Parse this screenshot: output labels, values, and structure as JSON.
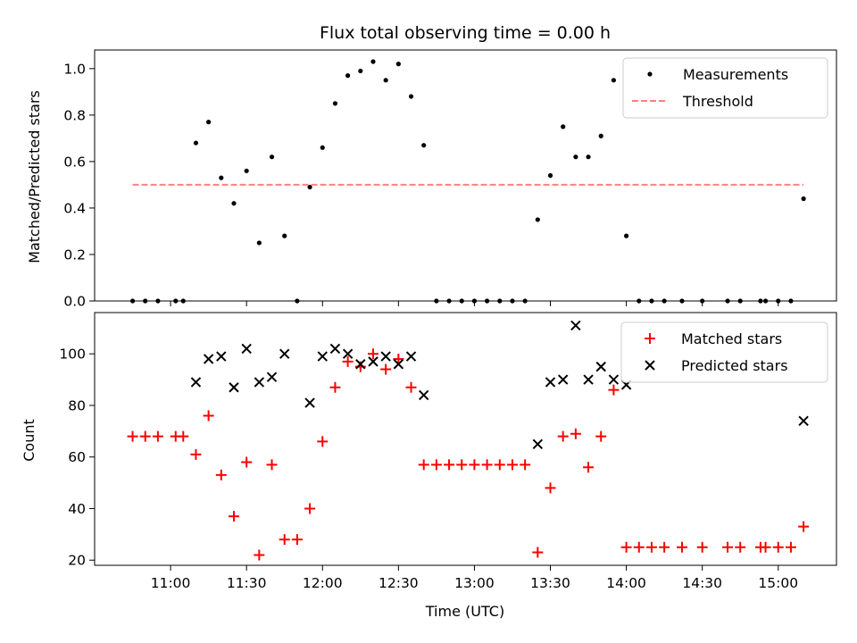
{
  "chart_data": [
    {
      "type": "scatter",
      "title": "Flux total observing time = 0.00 h",
      "xlabel": "",
      "ylabel": "Matched/Predicted stars",
      "ylim": [
        0,
        1.08
      ],
      "yticks": [
        "0.0",
        "0.2",
        "0.4",
        "0.6",
        "0.8",
        "1.0"
      ],
      "legend_position": "top-right",
      "series": [
        {
          "name": "Measurements",
          "color": "#000000",
          "marker": "dot",
          "x": [
            "10:45",
            "10:50",
            "10:55",
            "11:02",
            "11:05",
            "11:10",
            "11:15",
            "11:20",
            "11:25",
            "11:30",
            "11:35",
            "11:40",
            "11:45",
            "11:50",
            "11:55",
            "12:00",
            "12:05",
            "12:10",
            "12:15",
            "12:20",
            "12:25",
            "12:30",
            "12:35",
            "12:40",
            "12:45",
            "12:50",
            "12:55",
            "13:00",
            "13:05",
            "13:10",
            "13:15",
            "13:20",
            "13:25",
            "13:30",
            "13:35",
            "13:40",
            "13:45",
            "13:50",
            "13:55",
            "14:00",
            "14:05",
            "14:10",
            "14:15",
            "14:22",
            "14:30",
            "14:40",
            "14:45",
            "14:53",
            "14:55",
            "15:00",
            "15:05",
            "15:10"
          ],
          "y": [
            0,
            0,
            0,
            0,
            0,
            0.68,
            0.77,
            0.53,
            0.42,
            0.56,
            0.25,
            0.62,
            0.28,
            0,
            0.49,
            0.66,
            0.85,
            0.97,
            0.99,
            1.03,
            0.95,
            1.02,
            0.88,
            0.67,
            0,
            0,
            0,
            0,
            0,
            0,
            0,
            0,
            0.35,
            0.54,
            0.75,
            0.62,
            0.62,
            0.71,
            0.95,
            0.28,
            0,
            0,
            0,
            0,
            0,
            0,
            0,
            0,
            0,
            0,
            0,
            0.44
          ]
        },
        {
          "name": "Threshold",
          "color": "#ff8080",
          "line": "dashed",
          "x": [
            "10:45",
            "15:10"
          ],
          "y": [
            0.5,
            0.5
          ]
        }
      ]
    },
    {
      "type": "scatter",
      "title": "",
      "xlabel": "Time (UTC)",
      "ylabel": "Count",
      "ylim": [
        18,
        116
      ],
      "yticks": [
        "20",
        "40",
        "60",
        "80",
        "100"
      ],
      "xlim": [
        "10:30",
        "15:23"
      ],
      "xticks": [
        "11:00",
        "11:30",
        "12:00",
        "12:30",
        "13:00",
        "13:30",
        "14:00",
        "14:30",
        "15:00"
      ],
      "legend_position": "top-right",
      "series": [
        {
          "name": "Matched stars",
          "color": "#ff0000",
          "marker": "plus",
          "x": [
            "10:45",
            "10:50",
            "10:55",
            "11:02",
            "11:05",
            "11:10",
            "11:15",
            "11:20",
            "11:25",
            "11:30",
            "11:35",
            "11:40",
            "11:45",
            "11:50",
            "11:55",
            "12:00",
            "12:05",
            "12:10",
            "12:15",
            "12:20",
            "12:25",
            "12:30",
            "12:35",
            "12:40",
            "12:45",
            "12:50",
            "12:55",
            "13:00",
            "13:05",
            "13:10",
            "13:15",
            "13:20",
            "13:25",
            "13:30",
            "13:35",
            "13:40",
            "13:45",
            "13:50",
            "13:55",
            "14:00",
            "14:05",
            "14:10",
            "14:15",
            "14:22",
            "14:30",
            "14:40",
            "14:45",
            "14:53",
            "14:55",
            "15:00",
            "15:05",
            "15:10"
          ],
          "y": [
            68,
            68,
            68,
            68,
            68,
            61,
            76,
            53,
            37,
            58,
            22,
            57,
            28,
            28,
            40,
            66,
            87,
            97,
            95,
            100,
            94,
            98,
            87,
            57,
            57,
            57,
            57,
            57,
            57,
            57,
            57,
            57,
            23,
            48,
            68,
            69,
            56,
            68,
            86,
            25,
            25,
            25,
            25,
            25,
            25,
            25,
            25,
            25,
            25,
            25,
            25,
            33
          ]
        },
        {
          "name": "Predicted stars",
          "color": "#000000",
          "marker": "cross",
          "x": [
            "11:10",
            "11:15",
            "11:20",
            "11:25",
            "11:30",
            "11:35",
            "11:40",
            "11:45",
            "11:55",
            "12:00",
            "12:05",
            "12:10",
            "12:15",
            "12:20",
            "12:25",
            "12:30",
            "12:35",
            "12:40",
            "13:25",
            "13:30",
            "13:35",
            "13:40",
            "13:45",
            "13:50",
            "13:55",
            "14:00",
            "15:10"
          ],
          "y": [
            89,
            98,
            99,
            87,
            102,
            89,
            91,
            100,
            81,
            99,
            102,
            100,
            96,
            97,
            99,
            96,
            99,
            84,
            65,
            89,
            90,
            111,
            90,
            95,
            90,
            88,
            74
          ]
        }
      ]
    }
  ]
}
